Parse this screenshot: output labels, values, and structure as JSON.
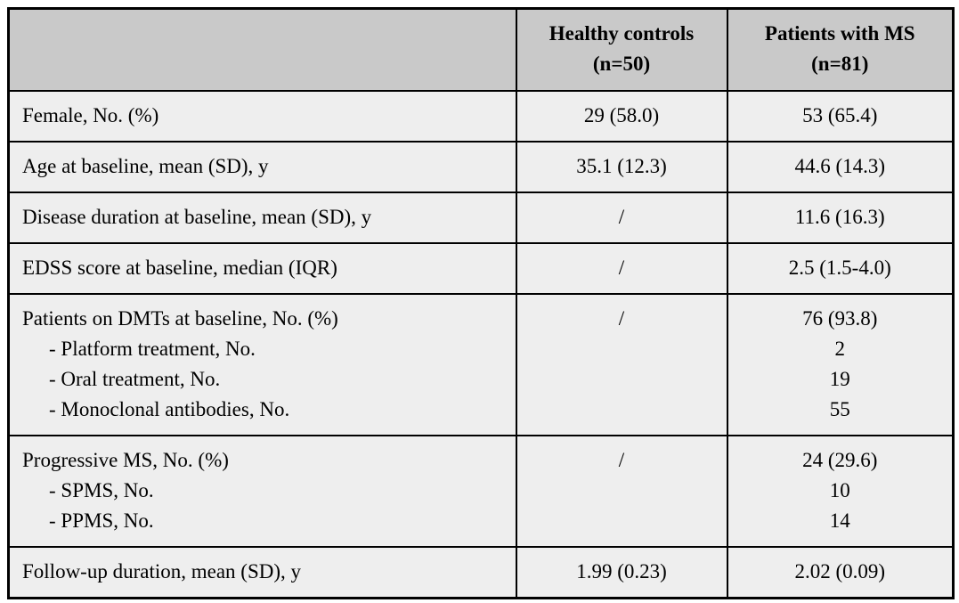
{
  "table": {
    "header": {
      "label": "",
      "hc": {
        "line1": "Healthy controls",
        "line2": "(n=50)"
      },
      "ms": {
        "line1": "Patients with MS",
        "line2": "(n=81)"
      }
    },
    "rows": [
      {
        "label": [
          "Female, No. (%)"
        ],
        "hc": [
          "29 (58.0)"
        ],
        "ms": [
          "53 (65.4)"
        ]
      },
      {
        "label": [
          "Age at baseline, mean (SD), y"
        ],
        "hc": [
          "35.1 (12.3)"
        ],
        "ms": [
          "44.6 (14.3)"
        ]
      },
      {
        "label": [
          "Disease duration at baseline, mean (SD), y"
        ],
        "hc": [
          "/"
        ],
        "ms": [
          "11.6 (16.3)"
        ]
      },
      {
        "label": [
          "EDSS score at baseline, median (IQR)"
        ],
        "hc": [
          "/"
        ],
        "ms": [
          "2.5 (1.5-4.0)"
        ]
      },
      {
        "label": [
          "Patients on DMTs at baseline, No. (%)",
          "- Platform treatment, No.",
          "- Oral treatment, No.",
          "- Monoclonal antibodies, No."
        ],
        "hc": [
          "/"
        ],
        "ms": [
          "76 (93.8)",
          "2",
          "19",
          "55"
        ]
      },
      {
        "label": [
          "Progressive MS, No. (%)",
          "- SPMS, No.",
          "- PPMS, No."
        ],
        "hc": [
          "/"
        ],
        "ms": [
          "24 (29.6)",
          "10",
          "14"
        ]
      },
      {
        "label": [
          "Follow-up duration, mean (SD), y"
        ],
        "hc": [
          "1.99 (0.23)"
        ],
        "ms": [
          "2.02 (0.09)"
        ]
      }
    ],
    "colors": {
      "header_bg": "#c9c9c9",
      "row_bg": "#eeeeee",
      "border": "#000000",
      "text": "#000000"
    }
  }
}
